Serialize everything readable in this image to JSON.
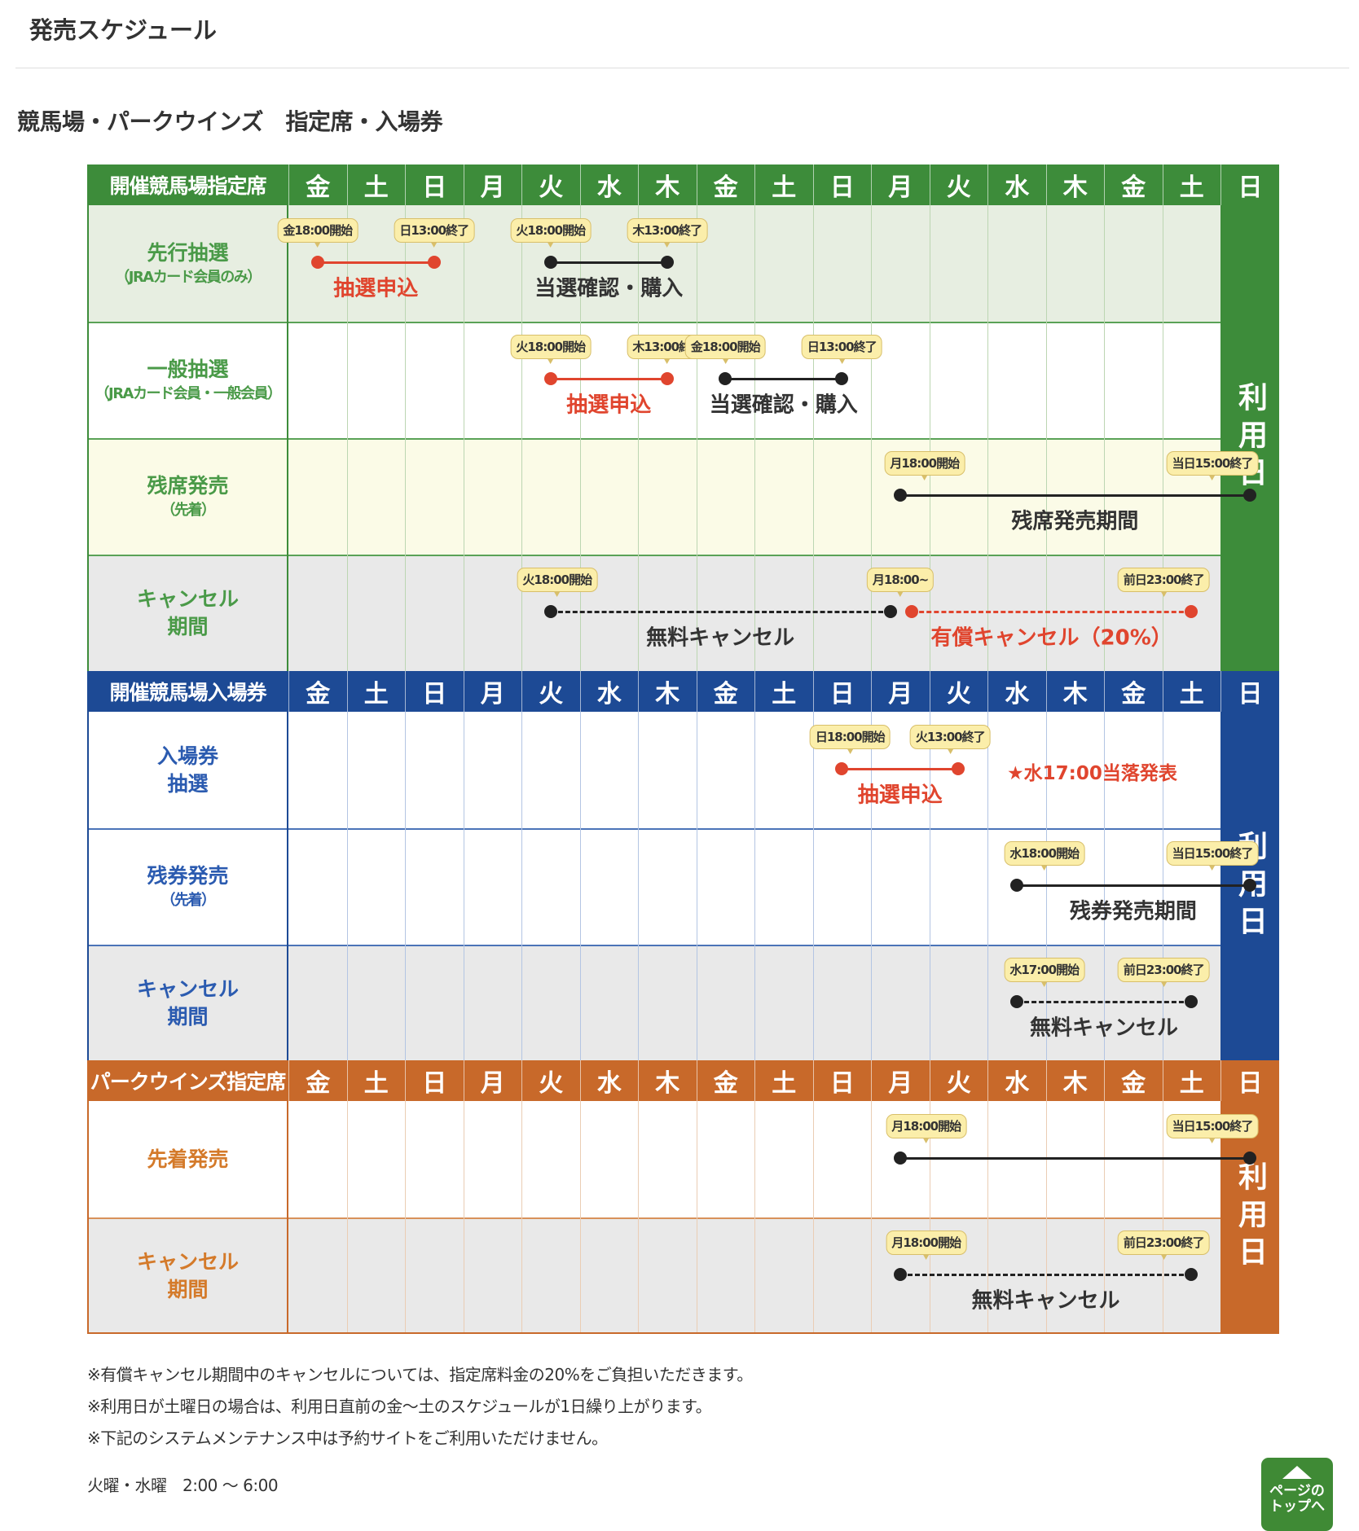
{
  "page_title": "発売スケジュール",
  "section_title": "競馬場・パークウインズ　指定席・入場券",
  "days": [
    "金",
    "土",
    "日",
    "月",
    "火",
    "水",
    "木",
    "金",
    "土",
    "日",
    "月",
    "火",
    "水",
    "木",
    "金",
    "土",
    "日"
  ],
  "use_day_label": "利用日",
  "colors": {
    "green": "#3d8c3a",
    "blue": "#1d4a95",
    "orange": "#c8692a",
    "red": "#e0452e",
    "callout": "#fbeeaa"
  },
  "sections": [
    {
      "header": "開催競馬場指定席",
      "rows": [
        {
          "label": "先行抽選",
          "sub": "（JRAカード会員のみ）",
          "periods": [
            {
              "label": "抽選申込",
              "start": "金18:00開始",
              "end": "日13:00終了"
            },
            {
              "label": "当選確認・購入",
              "start": "火18:00開始",
              "end": "木13:00終了"
            }
          ]
        },
        {
          "label": "一般抽選",
          "sub": "（JRAカード会員・一般会員）",
          "periods": [
            {
              "label": "抽選申込",
              "start": "火18:00開始",
              "end": "木13:00終了"
            },
            {
              "label": "当選確認・購入",
              "start": "金18:00開始",
              "end": "日13:00終了"
            }
          ]
        },
        {
          "label": "残席発売",
          "sub": "（先着）",
          "periods": [
            {
              "label": "残席発売期間",
              "start": "月18:00開始",
              "end": "当日15:00終了"
            }
          ]
        },
        {
          "label": "キャンセル",
          "sub": "期間",
          "periods": [
            {
              "label": "無料キャンセル",
              "start": "火18:00開始"
            },
            {
              "label": "有償キャンセル（20%）",
              "start": "月18:00~",
              "end": "前日23:00終了"
            }
          ]
        }
      ]
    },
    {
      "header": "開催競馬場入場券",
      "rows": [
        {
          "label": "入場券",
          "sub": "抽選",
          "note": "★水17:00当落発表",
          "periods": [
            {
              "label": "抽選申込",
              "start": "日18:00開始",
              "end": "火13:00終了"
            }
          ]
        },
        {
          "label": "残券発売",
          "sub": "（先着）",
          "periods": [
            {
              "label": "残券発売期間",
              "start": "水18:00開始",
              "end": "当日15:00終了"
            }
          ]
        },
        {
          "label": "キャンセル",
          "sub": "期間",
          "periods": [
            {
              "label": "無料キャンセル",
              "start": "水17:00開始",
              "end": "前日23:00終了"
            }
          ]
        }
      ]
    },
    {
      "header": "パークウインズ指定席",
      "rows": [
        {
          "label": "先着発売",
          "periods": [
            {
              "label": "",
              "start": "月18:00開始",
              "end": "当日15:00終了"
            }
          ]
        },
        {
          "label": "キャンセル",
          "sub": "期間",
          "periods": [
            {
              "label": "無料キャンセル",
              "start": "月18:00開始",
              "end": "前日23:00終了"
            }
          ]
        }
      ]
    }
  ],
  "notes": [
    "※有償キャンセル期間中のキャンセルについては、指定席料金の20%をご負担いただきます。",
    "※利用日が土曜日の場合は、利用日直前の金～土のスケジュールが1日繰り上がります。",
    "※下記のシステムメンテナンス中は予約サイトをご利用いただけません。"
  ],
  "maintenance": "火曜・水曜　2:00 ～ 6:00",
  "page_top_button": {
    "line1": "ページの",
    "line2": "トップへ"
  }
}
